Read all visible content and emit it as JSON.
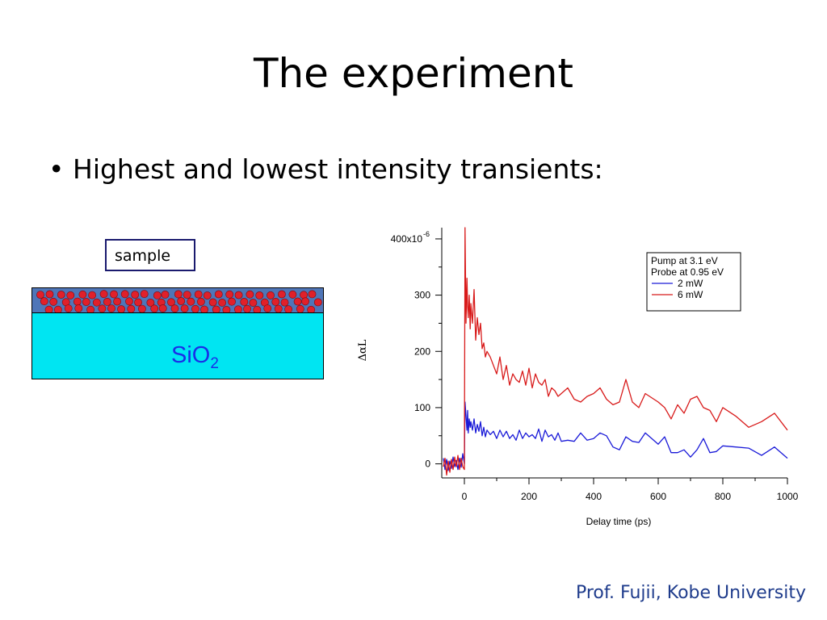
{
  "slide": {
    "title": "The experiment",
    "bullet": "Highest and lowest intensity transients:",
    "footer": "Prof. Fujii, Kobe University"
  },
  "diagram": {
    "sample_label": "sample",
    "substrate_label": "SiO",
    "substrate_subscript": "2",
    "colors": {
      "substrate": "#00e5f2",
      "layer": "#4f76b8",
      "particle": "#e0202a"
    }
  },
  "chart_data": {
    "type": "line",
    "xlabel": "Delay time (ps)",
    "ylabel": "ΔαL",
    "xlim": [
      -70,
      1000
    ],
    "ylim": [
      -25,
      420
    ],
    "x_ticks": [
      0,
      200,
      400,
      600,
      800,
      1000
    ],
    "y_ticks": [
      0,
      100,
      200,
      300
    ],
    "y_top_label": "400x10",
    "y_top_exponent": "-6",
    "legend": {
      "lines": [
        "Pump at 3.1 eV",
        "Probe at 0.95 eV"
      ],
      "placement": "top-right"
    },
    "series": [
      {
        "name": "2 mW",
        "color": "#1a1ad8",
        "x": [
          -65,
          -60,
          -55,
          -50,
          -45,
          -40,
          -35,
          -30,
          -25,
          -20,
          -15,
          -10,
          -5,
          0,
          2,
          5,
          8,
          10,
          12,
          15,
          18,
          20,
          25,
          30,
          35,
          40,
          45,
          50,
          55,
          60,
          65,
          70,
          80,
          90,
          100,
          110,
          120,
          130,
          140,
          150,
          160,
          170,
          180,
          190,
          200,
          210,
          220,
          230,
          240,
          250,
          260,
          270,
          280,
          290,
          300,
          320,
          340,
          360,
          380,
          400,
          420,
          440,
          460,
          480,
          500,
          520,
          540,
          560,
          600,
          620,
          640,
          660,
          680,
          700,
          720,
          740,
          760,
          780,
          800,
          840,
          880,
          920,
          960,
          1000
        ],
        "y": [
          10,
          -10,
          8,
          -12,
          5,
          -8,
          12,
          -5,
          6,
          -10,
          10,
          -6,
          18,
          0,
          110,
          85,
          60,
          95,
          55,
          80,
          65,
          75,
          60,
          80,
          55,
          70,
          58,
          75,
          50,
          65,
          48,
          60,
          52,
          58,
          45,
          60,
          48,
          58,
          45,
          52,
          42,
          60,
          45,
          55,
          48,
          52,
          45,
          62,
          40,
          60,
          48,
          52,
          42,
          55,
          40,
          42,
          40,
          55,
          42,
          45,
          55,
          50,
          30,
          25,
          48,
          40,
          38,
          55,
          35,
          48,
          20,
          20,
          25,
          12,
          25,
          45,
          20,
          22,
          32,
          30,
          28,
          15,
          30,
          10
        ]
      },
      {
        "name": "6 mW",
        "color": "#d81a1a",
        "x": [
          -65,
          -60,
          -55,
          -50,
          -45,
          -40,
          -35,
          -30,
          -25,
          -20,
          -15,
          -10,
          -5,
          0,
          2,
          5,
          8,
          10,
          12,
          15,
          18,
          20,
          25,
          30,
          35,
          40,
          45,
          50,
          55,
          60,
          65,
          70,
          80,
          90,
          100,
          110,
          120,
          130,
          140,
          150,
          160,
          170,
          180,
          190,
          200,
          210,
          220,
          230,
          240,
          250,
          260,
          270,
          280,
          290,
          300,
          320,
          340,
          360,
          380,
          400,
          420,
          440,
          460,
          480,
          500,
          520,
          540,
          560,
          600,
          620,
          640,
          660,
          680,
          700,
          720,
          740,
          760,
          780,
          800,
          840,
          880,
          920,
          960,
          1000
        ],
        "y": [
          -5,
          10,
          -20,
          5,
          -15,
          8,
          -10,
          12,
          -5,
          15,
          -10,
          10,
          -5,
          -10,
          420,
          250,
          330,
          280,
          260,
          300,
          240,
          285,
          250,
          310,
          220,
          260,
          230,
          250,
          205,
          215,
          190,
          200,
          190,
          175,
          160,
          190,
          150,
          175,
          140,
          160,
          150,
          145,
          165,
          140,
          170,
          135,
          160,
          145,
          140,
          150,
          120,
          135,
          130,
          120,
          125,
          135,
          115,
          110,
          120,
          125,
          135,
          115,
          105,
          110,
          150,
          110,
          100,
          125,
          110,
          100,
          80,
          105,
          90,
          115,
          120,
          100,
          95,
          75,
          100,
          85,
          65,
          75,
          90,
          60
        ]
      }
    ]
  }
}
